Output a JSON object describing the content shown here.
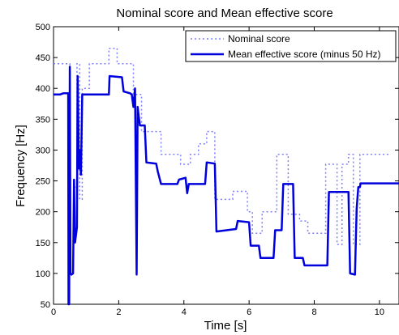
{
  "chart_data": {
    "type": "line",
    "title": "Nominal score and Mean effective score",
    "xlabel": "Time [s]",
    "ylabel": "Frequency [Hz]",
    "xlim": [
      0,
      10.6
    ],
    "ylim": [
      50,
      500
    ],
    "xticks": [
      0,
      2,
      4,
      6,
      8,
      10
    ],
    "yticks": [
      50,
      100,
      150,
      200,
      250,
      300,
      350,
      400,
      450,
      500
    ],
    "grid": false,
    "legend_position": "top-right",
    "series": [
      {
        "name": "Nominal score",
        "color": "#7f7fff",
        "style": "dotted",
        "points": [
          [
            0,
            440
          ],
          [
            0.5,
            440
          ],
          [
            0.5,
            150
          ],
          [
            0.62,
            150
          ],
          [
            0.62,
            240
          ],
          [
            0.72,
            240
          ],
          [
            0.72,
            440
          ],
          [
            0.8,
            440
          ],
          [
            0.8,
            220
          ],
          [
            0.88,
            220
          ],
          [
            0.88,
            400
          ],
          [
            1.1,
            400
          ],
          [
            1.1,
            440
          ],
          [
            1.7,
            440
          ],
          [
            1.7,
            465
          ],
          [
            1.95,
            465
          ],
          [
            1.95,
            440
          ],
          [
            2.45,
            440
          ],
          [
            2.45,
            390
          ],
          [
            2.7,
            390
          ],
          [
            2.7,
            330
          ],
          [
            3.3,
            330
          ],
          [
            3.3,
            293
          ],
          [
            3.9,
            293
          ],
          [
            3.9,
            277
          ],
          [
            4.2,
            277
          ],
          [
            4.2,
            293
          ],
          [
            4.45,
            293
          ],
          [
            4.45,
            310
          ],
          [
            4.7,
            310
          ],
          [
            4.7,
            330
          ],
          [
            4.95,
            330
          ],
          [
            4.95,
            220
          ],
          [
            5.5,
            220
          ],
          [
            5.5,
            233
          ],
          [
            5.95,
            233
          ],
          [
            5.95,
            200
          ],
          [
            6.1,
            200
          ],
          [
            6.1,
            165
          ],
          [
            6.4,
            165
          ],
          [
            6.4,
            200
          ],
          [
            6.85,
            200
          ],
          [
            6.85,
            293
          ],
          [
            7.2,
            293
          ],
          [
            7.2,
            196
          ],
          [
            7.55,
            196
          ],
          [
            7.55,
            185
          ],
          [
            7.8,
            185
          ],
          [
            7.8,
            165
          ],
          [
            8.35,
            165
          ],
          [
            8.35,
            277
          ],
          [
            8.7,
            277
          ],
          [
            8.7,
            147
          ],
          [
            8.85,
            147
          ],
          [
            8.85,
            277
          ],
          [
            9.05,
            277
          ],
          [
            9.05,
            293
          ],
          [
            9.2,
            293
          ],
          [
            9.2,
            147
          ],
          [
            9.4,
            147
          ],
          [
            9.4,
            293
          ],
          [
            10.3,
            293
          ]
        ]
      },
      {
        "name": "Mean effective score (minus 50 Hz)",
        "color": "#0000dd",
        "style": "solid",
        "points": [
          [
            0,
            390
          ],
          [
            0.2,
            390
          ],
          [
            0.3,
            392
          ],
          [
            0.45,
            392
          ],
          [
            0.46,
            50
          ],
          [
            0.48,
            50
          ],
          [
            0.5,
            435
          ],
          [
            0.52,
            100
          ],
          [
            0.55,
            98
          ],
          [
            0.6,
            100
          ],
          [
            0.63,
            252
          ],
          [
            0.66,
            150
          ],
          [
            0.72,
            175
          ],
          [
            0.74,
            420
          ],
          [
            0.76,
            350
          ],
          [
            0.78,
            270
          ],
          [
            0.8,
            300
          ],
          [
            0.84,
            260
          ],
          [
            0.88,
            390
          ],
          [
            1.7,
            390
          ],
          [
            1.72,
            420
          ],
          [
            2.1,
            418
          ],
          [
            2.15,
            395
          ],
          [
            2.35,
            392
          ],
          [
            2.4,
            390
          ],
          [
            2.45,
            370
          ],
          [
            2.5,
            400
          ],
          [
            2.55,
            98
          ],
          [
            2.58,
            370
          ],
          [
            2.65,
            340
          ],
          [
            2.8,
            340
          ],
          [
            2.85,
            280
          ],
          [
            3.15,
            278
          ],
          [
            3.2,
            265
          ],
          [
            3.3,
            245
          ],
          [
            3.8,
            245
          ],
          [
            3.85,
            252
          ],
          [
            4.05,
            255
          ],
          [
            4.1,
            230
          ],
          [
            4.15,
            245
          ],
          [
            4.65,
            245
          ],
          [
            4.7,
            280
          ],
          [
            4.95,
            278
          ],
          [
            5.0,
            168
          ],
          [
            5.6,
            172
          ],
          [
            5.65,
            185
          ],
          [
            6.0,
            183
          ],
          [
            6.05,
            145
          ],
          [
            6.3,
            145
          ],
          [
            6.35,
            125
          ],
          [
            6.75,
            125
          ],
          [
            6.8,
            170
          ],
          [
            7.0,
            170
          ],
          [
            7.05,
            245
          ],
          [
            7.35,
            245
          ],
          [
            7.4,
            125
          ],
          [
            7.65,
            125
          ],
          [
            7.7,
            113
          ],
          [
            8.4,
            113
          ],
          [
            8.45,
            232
          ],
          [
            9.05,
            232
          ],
          [
            9.1,
            100
          ],
          [
            9.25,
            98
          ],
          [
            9.3,
            205
          ],
          [
            9.35,
            240
          ],
          [
            9.4,
            240
          ],
          [
            9.42,
            246
          ],
          [
            10.6,
            246
          ]
        ]
      }
    ]
  }
}
